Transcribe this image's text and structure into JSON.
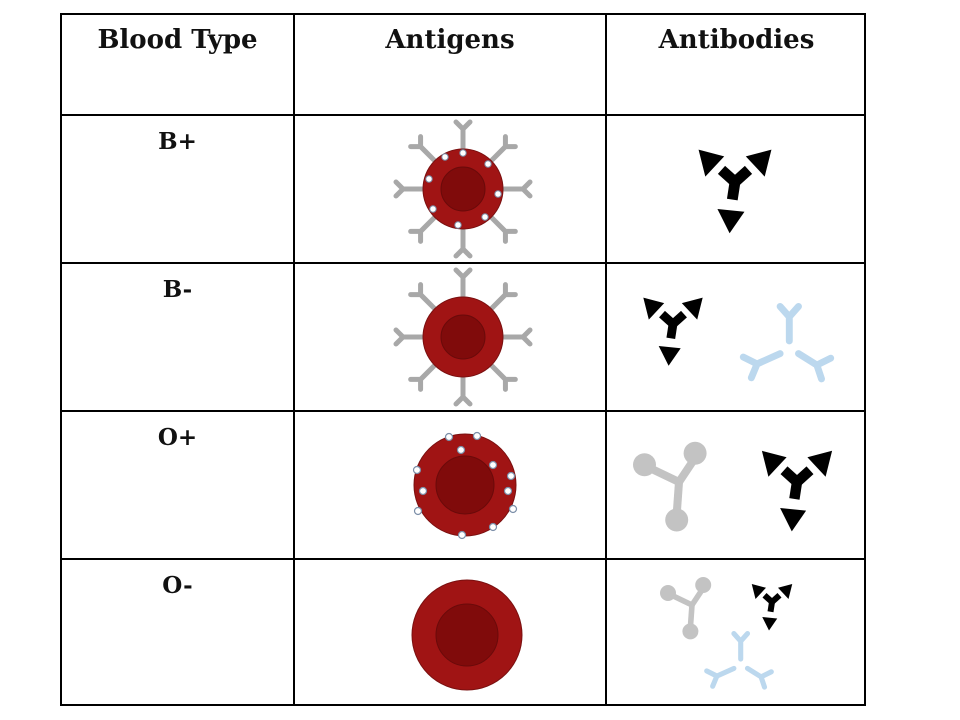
{
  "headers": {
    "blood_type": "Blood Type",
    "antigens": "Antigens",
    "antibodies": "Antibodies"
  },
  "rows": [
    {
      "label": "B+",
      "antigens": [
        "B antigen",
        "Rh antigen"
      ],
      "antibodies": [
        "anti-A"
      ]
    },
    {
      "label": "B-",
      "antigens": [
        "B antigen"
      ],
      "antibodies": [
        "anti-A",
        "anti-Rh"
      ]
    },
    {
      "label": "O+",
      "antigens": [
        "Rh antigen"
      ],
      "antibodies": [
        "anti-B",
        "anti-A"
      ]
    },
    {
      "label": "O-",
      "antigens": [],
      "antibodies": [
        "anti-B",
        "anti-A",
        "anti-Rh"
      ]
    }
  ],
  "colors": {
    "cell_outer": "#a01414",
    "cell_inner": "#800b0b",
    "b_antigen": "#a8a8a8",
    "rh_antigen": "#ffffff",
    "anti_a": "#000000",
    "anti_b": "#c3c3c3",
    "anti_rh": "#bcd8ee"
  }
}
